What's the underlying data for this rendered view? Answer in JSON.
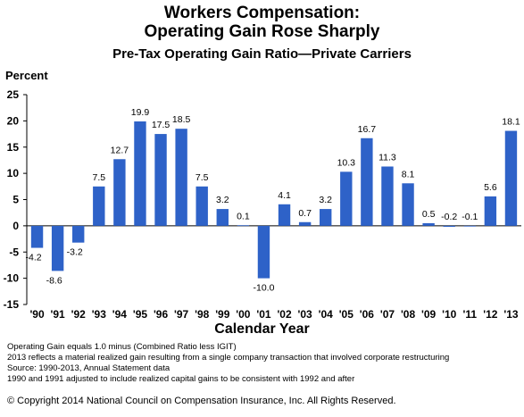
{
  "title_line1": "Workers Compensation:",
  "title_line2": "Operating Gain Rose Sharply",
  "subtitle": "Pre-Tax Operating Gain Ratio—Private Carriers",
  "footnotes": [
    "Operating Gain equals 1.0 minus (Combined Ratio less IGIT)",
    "2013 reflects a material realized gain resulting from a single company transaction that involved corporate restructuring",
    "Source:  1990-2013, Annual Statement data",
    "1990 and 1991 adjusted to include realized capital gains to be consistent with 1992 and after"
  ],
  "copyright": "© Copyright 2014 National Council on Compensation Insurance, Inc. All Rights Reserved.",
  "colors": {
    "bar": "#2e62c8",
    "axis": "#000000"
  },
  "chart_data": {
    "type": "bar",
    "ylabel": "Percent",
    "xlabel": "Calendar Year",
    "ylim": [
      -15,
      25
    ],
    "yticks": [
      25,
      20,
      15,
      10,
      5,
      0,
      -5,
      -10,
      -15
    ],
    "grid": false,
    "categories": [
      "'90",
      "'91",
      "'92",
      "'93",
      "'94",
      "'95",
      "'96",
      "'97",
      "'98",
      "'99",
      "'00",
      "'01",
      "'02",
      "'03",
      "'04",
      "'05",
      "'06",
      "'07",
      "'08",
      "'09",
      "'10",
      "'11",
      "'12",
      "'13"
    ],
    "values": [
      -4.2,
      -8.6,
      -3.2,
      7.5,
      12.7,
      19.9,
      17.5,
      18.5,
      7.5,
      3.2,
      0.1,
      -10.0,
      4.1,
      0.7,
      3.2,
      10.3,
      16.7,
      11.3,
      8.1,
      0.5,
      -0.2,
      -0.1,
      5.6,
      18.1
    ],
    "labels": [
      "-4.2",
      "-8.6",
      "-3.2",
      "7.5",
      "12.7",
      "19.9",
      "17.5",
      "18.5",
      "7.5",
      "3.2",
      "0.1",
      "-10.0",
      "4.1",
      "0.7",
      "3.2",
      "10.3",
      "16.7",
      "11.3",
      "8.1",
      "0.5",
      "-0.2",
      "-0.1",
      "5.6",
      "18.1"
    ]
  }
}
